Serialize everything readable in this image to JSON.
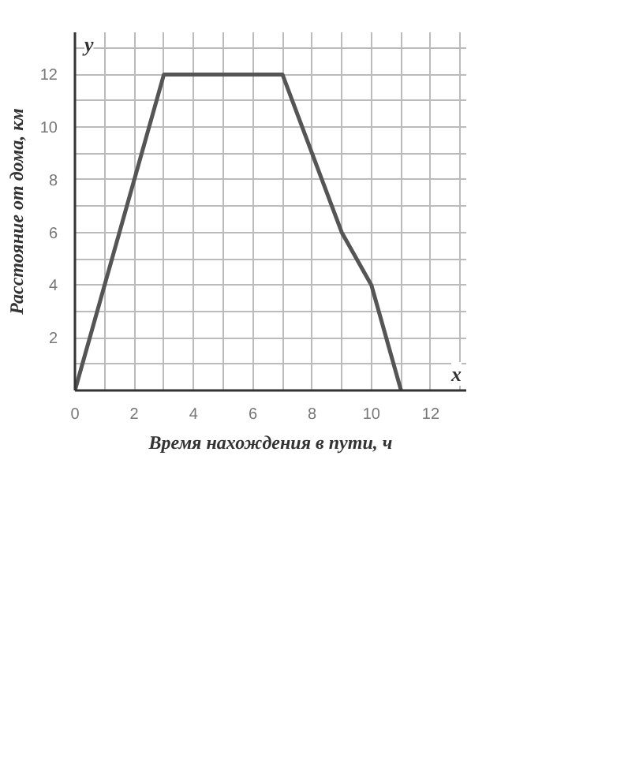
{
  "chart_data": {
    "type": "line",
    "xlabel": "Время нахождения в пути, ч",
    "ylabel": "Расстояние от дома, км",
    "x": [
      0,
      3,
      7,
      9,
      10,
      11
    ],
    "values": [
      0,
      12,
      12,
      6,
      4,
      0
    ],
    "color": "#555555",
    "xlim": [
      0,
      13.2
    ],
    "ylim": [
      0,
      13.6
    ],
    "xticks": [
      0,
      {
        "value": 1,
        "label": null
      },
      2,
      {
        "value": 3,
        "label": null
      },
      4,
      {
        "value": 5,
        "label": null
      },
      6,
      {
        "value": 7,
        "label": null
      },
      8,
      {
        "value": 9,
        "label": null
      },
      10,
      {
        "value": 11,
        "label": null
      },
      12,
      {
        "value": 13,
        "label": null
      }
    ],
    "yticks": [
      {
        "value": 0,
        "label": null
      },
      {
        "value": 1,
        "label": null
      },
      2,
      {
        "value": 3,
        "label": null
      },
      4,
      {
        "value": 5,
        "label": null
      },
      6,
      {
        "value": 7,
        "label": null
      },
      8,
      {
        "value": 9,
        "label": null
      },
      10,
      {
        "value": 11,
        "label": null
      },
      12,
      {
        "value": 13,
        "label": null
      }
    ],
    "grid": true,
    "marker": "none",
    "line_style": "solid",
    "annotations": [
      "x",
      "y"
    ]
  }
}
